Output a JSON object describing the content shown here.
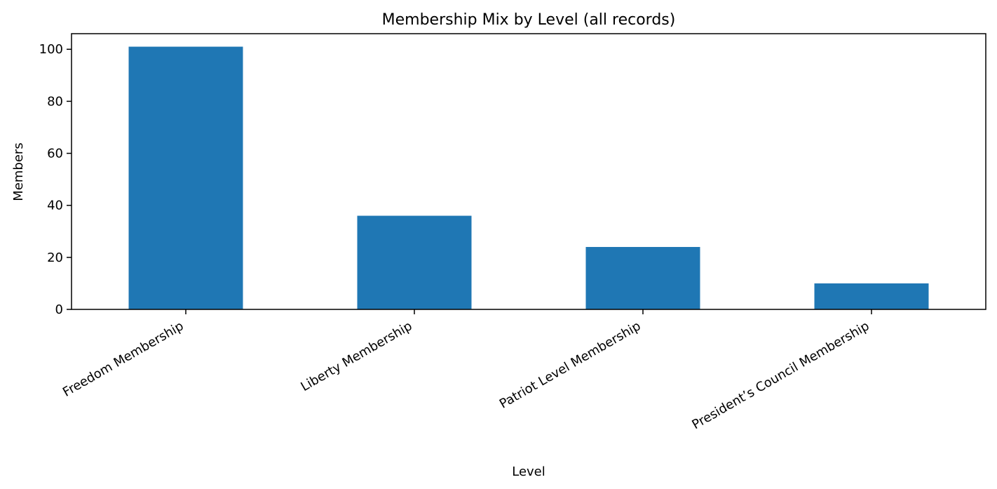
{
  "chart_data": {
    "type": "bar",
    "title": "Membership Mix by Level (all records)",
    "xlabel": "Level",
    "ylabel": "Members",
    "categories": [
      "Freedom Membership",
      "Liberty Membership",
      "Patriot Level Membership",
      "President’s Council Membership"
    ],
    "values": [
      101,
      36,
      24,
      10
    ],
    "ylim": [
      0,
      106
    ],
    "yticks": [
      0,
      20,
      40,
      60,
      80,
      100
    ],
    "bar_color": "#1f77b4",
    "grid": false,
    "legend": "none"
  }
}
